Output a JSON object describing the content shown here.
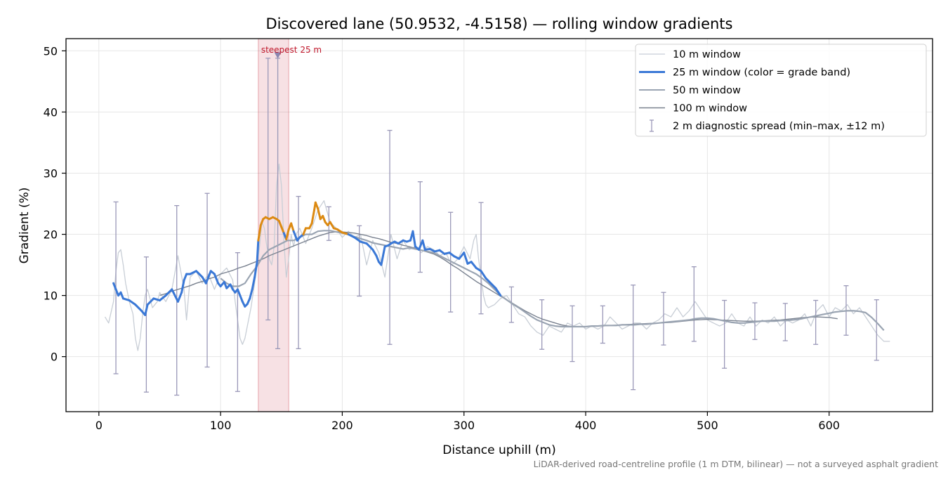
{
  "chart_data": {
    "type": "line",
    "title": "Discovered lane (50.9532, -4.5158) — rolling window gradients",
    "xlabel": "Distance uphill (m)",
    "ylabel": "Gradient (%)",
    "xlim": [
      -27,
      685
    ],
    "ylim": [
      -9,
      52
    ],
    "xticks": [
      0,
      100,
      200,
      300,
      400,
      500,
      600
    ],
    "yticks": [
      0,
      10,
      20,
      30,
      40,
      50
    ],
    "grid": true,
    "legend_position": "upper right",
    "footnote": "LiDAR-derived road-centreline profile (1 m DTM, bilinear) — not a surveyed asphalt gradient",
    "highlight_band": {
      "x_start": 131,
      "x_end": 156,
      "label": "steepest 25 m",
      "marker_x": 147,
      "marker_y": 49.2,
      "color": "#c0172b"
    },
    "grade_band_colors": {
      "under_20": "#3a78d6",
      "20_to_25": "#dc8a12",
      "over_25": "#c0172b"
    },
    "series": [
      {
        "name": "10 m window",
        "color": "#c8ced6",
        "x": [
          5,
          8,
          12,
          14,
          16,
          18,
          20,
          22,
          25,
          28,
          30,
          32,
          34,
          36,
          38,
          40,
          42,
          44,
          46,
          48,
          50,
          55,
          60,
          65,
          70,
          72,
          75,
          80,
          85,
          90,
          95,
          100,
          105,
          110,
          112,
          114,
          116,
          118,
          120,
          125,
          128,
          130,
          132,
          134,
          136,
          138,
          140,
          142,
          144,
          146,
          148,
          150,
          152,
          154,
          156,
          158,
          160,
          162,
          165,
          170,
          175,
          180,
          185,
          190,
          195,
          200,
          205,
          210,
          215,
          220,
          225,
          230,
          235,
          240,
          245,
          250,
          255,
          260,
          265,
          270,
          275,
          280,
          285,
          290,
          295,
          300,
          305,
          308,
          310,
          312,
          314,
          316,
          318,
          320,
          325,
          330,
          335,
          340,
          345,
          350,
          355,
          360,
          365,
          370,
          375,
          380,
          385,
          390,
          395,
          400,
          405,
          410,
          415,
          420,
          425,
          430,
          435,
          440,
          445,
          450,
          455,
          460,
          465,
          470,
          475,
          480,
          485,
          490,
          495,
          500,
          505,
          510,
          515,
          520,
          525,
          530,
          535,
          540,
          545,
          550,
          555,
          560,
          565,
          570,
          575,
          580,
          585,
          590,
          595,
          600,
          605,
          610,
          615,
          620,
          625,
          630,
          635,
          640,
          645,
          650
        ],
        "y": [
          6.5,
          5.5,
          9.0,
          14.0,
          17.0,
          17.5,
          15.0,
          12.0,
          9.0,
          7.0,
          3.0,
          1.0,
          3.0,
          7.0,
          10.0,
          11.0,
          9.5,
          8.0,
          8.5,
          9.0,
          10.5,
          9.0,
          11.0,
          16.5,
          11.0,
          6.0,
          13.0,
          14.0,
          12.0,
          13.5,
          11.0,
          13.5,
          14.5,
          12.5,
          9.0,
          6.0,
          3.0,
          2.0,
          3.0,
          8.0,
          12.0,
          15.0,
          18.0,
          22.0,
          21.0,
          18.0,
          16.0,
          15.0,
          18.0,
          28.0,
          31.5,
          28.0,
          19.0,
          13.0,
          16.0,
          20.0,
          18.0,
          20.0,
          21.0,
          18.5,
          21.0,
          24.0,
          25.5,
          22.0,
          21.0,
          19.5,
          20.5,
          19.5,
          20.0,
          15.0,
          19.0,
          17.0,
          13.0,
          20.0,
          16.0,
          19.0,
          17.5,
          18.0,
          17.0,
          18.0,
          17.5,
          16.5,
          17.0,
          15.0,
          16.0,
          18.0,
          16.0,
          19.0,
          20.0,
          16.0,
          13.0,
          10.0,
          8.5,
          8.0,
          8.5,
          9.5,
          10.0,
          8.5,
          7.0,
          6.5,
          5.0,
          4.0,
          3.5,
          5.0,
          4.5,
          4.0,
          5.5,
          5.0,
          5.5,
          4.5,
          5.0,
          4.5,
          5.0,
          6.5,
          5.5,
          4.5,
          5.0,
          5.5,
          5.5,
          4.5,
          5.5,
          6.0,
          7.0,
          6.5,
          8.0,
          6.5,
          7.5,
          9.0,
          7.5,
          6.0,
          5.5,
          5.0,
          5.5,
          7.0,
          5.5,
          5.0,
          6.5,
          5.0,
          6.0,
          5.5,
          6.5,
          5.0,
          6.0,
          5.5,
          6.0,
          7.0,
          5.0,
          7.5,
          8.5,
          6.5,
          8.0,
          7.5,
          8.5,
          7.0,
          8.0,
          6.5,
          5.0,
          3.5,
          2.5,
          2.5
        ]
      },
      {
        "name": "25 m window (color = grade band)",
        "color": "#3a78d6",
        "x": [
          12,
          14,
          16,
          18,
          20,
          25,
          30,
          35,
          38,
          40,
          45,
          50,
          55,
          60,
          65,
          68,
          70,
          72,
          75,
          80,
          85,
          88,
          90,
          92,
          95,
          98,
          100,
          103,
          105,
          108,
          110,
          112,
          114,
          116,
          118,
          120,
          122,
          124,
          126,
          128,
          130,
          131,
          133,
          135,
          137,
          140,
          143,
          146,
          148,
          150,
          152,
          154,
          156,
          158,
          160,
          163,
          165,
          168,
          170,
          173,
          175,
          177,
          178,
          180,
          182,
          184,
          186,
          188,
          190,
          193,
          196,
          200,
          205,
          210,
          215,
          220,
          225,
          228,
          230,
          232,
          235,
          238,
          240,
          243,
          246,
          250,
          253,
          256,
          258,
          260,
          263,
          266,
          268,
          272,
          276,
          280,
          284,
          288,
          292,
          296,
          300,
          303,
          306,
          310,
          314,
          318,
          322,
          326,
          330
        ],
        "y": [
          12.0,
          11.0,
          10.0,
          10.5,
          9.5,
          9.2,
          8.5,
          7.5,
          6.8,
          8.5,
          9.5,
          9.2,
          10.0,
          11.0,
          9.0,
          10.5,
          12.5,
          13.5,
          13.5,
          14.0,
          13.0,
          12.0,
          13.0,
          14.0,
          13.5,
          12.0,
          11.5,
          12.2,
          11.2,
          11.8,
          11.0,
          10.5,
          11.0,
          10.0,
          9.0,
          8.2,
          8.6,
          9.5,
          11.0,
          13.0,
          15.5,
          19.0,
          21.5,
          22.5,
          22.8,
          22.5,
          22.8,
          22.5,
          22.2,
          21.2,
          20.2,
          19.2,
          20.8,
          21.8,
          20.5,
          19.0,
          19.5,
          20.0,
          21.0,
          21.0,
          21.8,
          24.0,
          25.2,
          24.2,
          22.5,
          23.0,
          22.0,
          21.5,
          22.0,
          21.0,
          20.8,
          20.3,
          20.0,
          19.5,
          18.8,
          18.5,
          17.5,
          16.5,
          15.5,
          15.0,
          18.0,
          18.2,
          18.5,
          18.8,
          18.5,
          19.0,
          18.8,
          19.0,
          20.5,
          18.0,
          17.5,
          19.0,
          17.5,
          17.6,
          17.2,
          17.4,
          16.8,
          17.0,
          16.4,
          16.0,
          17.0,
          15.2,
          15.5,
          14.5,
          14.0,
          12.8,
          12.0,
          11.2,
          10.0
        ]
      },
      {
        "name": "50 m window",
        "color": "#9aa4b2",
        "x": [
          100,
          105,
          110,
          115,
          120,
          125,
          130,
          135,
          140,
          145,
          150,
          155,
          160,
          165,
          170,
          175,
          180,
          185,
          190,
          195,
          200,
          205,
          210,
          215,
          220,
          225,
          230,
          235,
          240,
          245,
          250,
          255,
          260,
          265,
          270,
          275,
          280,
          285,
          290,
          295,
          300,
          305,
          310,
          315,
          320,
          325,
          330,
          335,
          340,
          345,
          350,
          355,
          360,
          365,
          370,
          375,
          380,
          385,
          390,
          395,
          400,
          405,
          410,
          415,
          420,
          425,
          430,
          435,
          440,
          445,
          450,
          455,
          460,
          465,
          470,
          475,
          480,
          485,
          490,
          495,
          500,
          505,
          510,
          515,
          520,
          525,
          530,
          535,
          540,
          545,
          550,
          555,
          560,
          565,
          570,
          575,
          580,
          585,
          590,
          595,
          600,
          605,
          610,
          615,
          620,
          625,
          630,
          635,
          640,
          645
        ],
        "y": [
          12.8,
          12.0,
          11.5,
          11.5,
          12.0,
          13.5,
          14.8,
          16.5,
          17.5,
          18.0,
          18.5,
          19.0,
          19.0,
          19.5,
          20.0,
          20.0,
          20.5,
          20.6,
          20.6,
          20.4,
          20.2,
          20.0,
          19.6,
          19.3,
          19.0,
          18.6,
          18.4,
          18.2,
          18.0,
          17.8,
          17.6,
          17.8,
          17.6,
          17.4,
          17.2,
          17.0,
          16.5,
          16.0,
          15.5,
          15.0,
          14.5,
          14.0,
          13.5,
          12.8,
          12.0,
          11.0,
          10.0,
          9.3,
          8.6,
          8.0,
          7.3,
          6.6,
          6.0,
          5.6,
          5.2,
          5.0,
          4.9,
          4.9,
          4.9,
          4.9,
          4.9,
          5.0,
          5.0,
          5.1,
          5.1,
          5.1,
          5.2,
          5.2,
          5.2,
          5.3,
          5.3,
          5.4,
          5.5,
          5.6,
          5.7,
          5.8,
          5.9,
          6.0,
          6.2,
          6.3,
          6.3,
          6.2,
          6.0,
          5.8,
          5.6,
          5.5,
          5.5,
          5.6,
          5.7,
          5.8,
          5.8,
          5.8,
          5.9,
          5.9,
          6.0,
          6.1,
          6.3,
          6.5,
          6.7,
          6.9,
          7.1,
          7.3,
          7.4,
          7.5,
          7.5,
          7.4,
          7.2,
          6.4,
          5.4,
          4.3
        ]
      },
      {
        "name": "100 m window",
        "color": "#7a8290",
        "x": [
          50,
          55,
          60,
          65,
          70,
          75,
          80,
          85,
          90,
          95,
          100,
          105,
          110,
          115,
          120,
          125,
          130,
          135,
          140,
          145,
          150,
          155,
          160,
          165,
          170,
          175,
          180,
          185,
          190,
          195,
          200,
          205,
          210,
          215,
          220,
          225,
          230,
          235,
          240,
          245,
          250,
          255,
          260,
          265,
          270,
          275,
          280,
          285,
          290,
          295,
          300,
          305,
          310,
          315,
          320,
          325,
          330,
          335,
          340,
          345,
          350,
          355,
          360,
          365,
          370,
          375,
          380,
          385,
          390,
          395,
          400,
          410,
          420,
          430,
          440,
          450,
          460,
          470,
          480,
          490,
          500,
          510,
          520,
          530,
          540,
          550,
          560,
          570,
          580,
          590,
          600,
          607
        ],
        "y": [
          10.0,
          10.3,
          10.7,
          11.0,
          11.3,
          11.6,
          12.0,
          12.3,
          12.7,
          13.0,
          13.5,
          13.8,
          14.1,
          14.5,
          14.8,
          15.2,
          15.6,
          16.0,
          16.5,
          16.9,
          17.3,
          17.7,
          18.1,
          18.5,
          18.9,
          19.3,
          19.7,
          20.0,
          20.3,
          20.4,
          20.4,
          20.3,
          20.2,
          20.0,
          19.8,
          19.5,
          19.3,
          19.0,
          18.7,
          18.5,
          18.2,
          18.0,
          17.7,
          17.4,
          17.1,
          16.8,
          16.3,
          15.7,
          15.0,
          14.4,
          13.7,
          13.0,
          12.3,
          11.7,
          11.1,
          10.5,
          9.9,
          9.3,
          8.7,
          8.1,
          7.5,
          7.0,
          6.5,
          6.1,
          5.8,
          5.5,
          5.2,
          5.0,
          4.9,
          4.9,
          4.9,
          5.0,
          5.1,
          5.2,
          5.3,
          5.4,
          5.5,
          5.6,
          5.8,
          6.0,
          6.1,
          6.0,
          5.9,
          5.8,
          5.8,
          5.9,
          6.0,
          6.2,
          6.4,
          6.5,
          6.4,
          6.2
        ]
      },
      {
        "name": "2 m diagnostic spread (min–max, ±12 m)",
        "color": "#9a98b8",
        "x": [
          14,
          39,
          64,
          89,
          114,
          139,
          147,
          164,
          189,
          214,
          239,
          264,
          289,
          314,
          339,
          364,
          389,
          414,
          439,
          464,
          489,
          514,
          539,
          564,
          589,
          614,
          639
        ],
        "y_min": [
          -2.8,
          -5.8,
          -6.3,
          -1.7,
          -5.7,
          6.0,
          1.3,
          1.3,
          19.0,
          9.9,
          2.0,
          13.8,
          7.3,
          7.0,
          5.6,
          1.2,
          -0.8,
          2.2,
          -5.4,
          1.9,
          2.5,
          -1.9,
          2.8,
          2.6,
          2.0,
          3.5,
          -0.6
        ],
        "y_max": [
          25.3,
          16.3,
          24.7,
          26.7,
          17.0,
          48.8,
          48.8,
          26.2,
          24.5,
          21.4,
          37.0,
          28.6,
          23.6,
          25.2,
          11.4,
          9.3,
          8.3,
          8.3,
          11.7,
          10.5,
          14.7,
          9.2,
          8.8,
          8.7,
          9.2,
          11.6,
          9.3
        ]
      }
    ]
  }
}
